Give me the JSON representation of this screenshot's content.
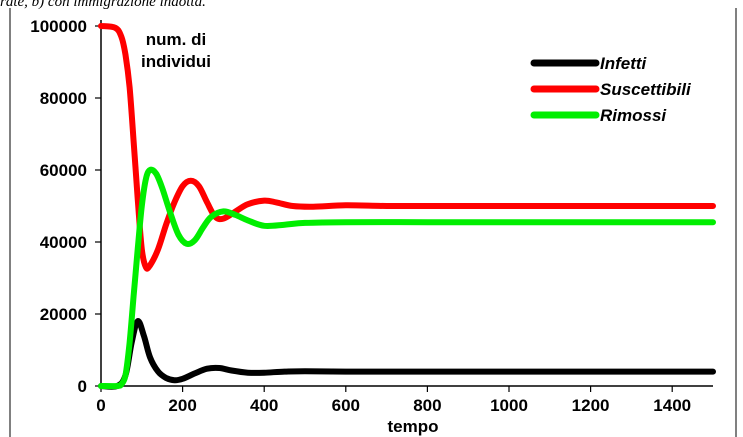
{
  "caption": "rate, b) con immigrazione indotta.",
  "chart_data": {
    "type": "line",
    "title": "",
    "xlabel": "tempo",
    "ylabel": "num. di individui",
    "ylabel_lines": [
      "num. di",
      "individui"
    ],
    "xlim": [
      0,
      1500
    ],
    "ylim": [
      0,
      100000
    ],
    "x_ticks": [
      0,
      200,
      400,
      600,
      800,
      1000,
      1200,
      1400
    ],
    "y_ticks": [
      0,
      20000,
      40000,
      60000,
      80000,
      100000
    ],
    "legend_position": "top-right",
    "grid": false,
    "series": [
      {
        "name": "Infetti",
        "color": "#000000",
        "x": [
          0,
          40,
          60,
          75,
          90,
          105,
          120,
          140,
          160,
          180,
          200,
          230,
          260,
          290,
          320,
          360,
          400,
          450,
          500,
          600,
          800,
          1000,
          1500
        ],
        "y": [
          0,
          0,
          3000,
          12000,
          18000,
          14000,
          8000,
          4000,
          2200,
          1600,
          2000,
          3500,
          4800,
          5000,
          4300,
          3700,
          3700,
          4000,
          4100,
          4000,
          4000,
          4000,
          4000
        ]
      },
      {
        "name": "Suscettibili",
        "color": "#ff0000",
        "x": [
          0,
          35,
          50,
          60,
          70,
          80,
          90,
          100,
          110,
          120,
          140,
          160,
          180,
          200,
          220,
          240,
          260,
          280,
          300,
          330,
          360,
          400,
          430,
          470,
          520,
          600,
          700,
          800,
          1000,
          1500
        ],
        "y": [
          100000,
          99500,
          97000,
          92000,
          83000,
          68000,
          52000,
          38000,
          33000,
          33500,
          38000,
          45000,
          51000,
          55500,
          57000,
          55500,
          51000,
          47000,
          46500,
          48500,
          50500,
          51500,
          51000,
          50000,
          49800,
          50200,
          50000,
          50000,
          50000,
          50000
        ]
      },
      {
        "name": "Rimossi",
        "color": "#00ee00",
        "x": [
          0,
          40,
          50,
          60,
          70,
          80,
          90,
          100,
          110,
          120,
          135,
          150,
          170,
          190,
          210,
          230,
          250,
          270,
          300,
          330,
          360,
          400,
          450,
          500,
          600,
          800,
          1000,
          1500
        ],
        "y": [
          0,
          0,
          500,
          3000,
          12000,
          25000,
          38000,
          50000,
          57500,
          60000,
          59000,
          55000,
          48000,
          42000,
          39500,
          40500,
          44000,
          47000,
          48500,
          47500,
          46000,
          44500,
          44800,
          45300,
          45500,
          45500,
          45500,
          45500
        ]
      }
    ]
  }
}
